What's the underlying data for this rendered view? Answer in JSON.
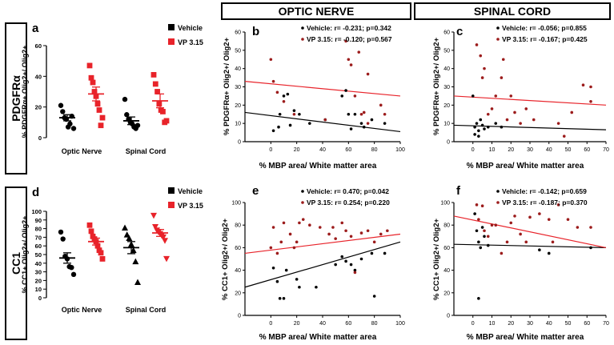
{
  "row_labels": {
    "top": "PDGFRα",
    "bottom": "CC1"
  },
  "column_headers": {
    "optic": "OPTIC NERVE",
    "spinal": "SPINAL CORD"
  },
  "colors": {
    "vehicle": "#000000",
    "vp": "#e8232a",
    "vp_points": "#9c1c1c"
  },
  "chart_data": [
    {
      "id": "a",
      "type": "scatter",
      "panel_letter": "a",
      "ylabel": "% PDGFRα+ Olig2+/ Olig2+",
      "ylim": [
        0,
        60
      ],
      "yticks": [
        0,
        20,
        40,
        60
      ],
      "categories": [
        "Optic Nerve",
        "Spinal Cord"
      ],
      "legend": [
        {
          "name": "Vehicle",
          "marker": "square",
          "color": "#000000"
        },
        {
          "name": "VP 3.15",
          "marker": "square",
          "color": "#e8232a"
        }
      ],
      "series": [
        {
          "name": "Vehicle",
          "category": "Optic Nerve",
          "marker": "circle",
          "values": [
            21,
            17,
            13,
            12,
            7,
            9,
            14,
            6
          ],
          "mean": 13,
          "sem": 2
        },
        {
          "name": "VP 3.15",
          "category": "Optic Nerve",
          "marker": "square",
          "values": [
            47,
            39,
            36,
            30,
            27,
            22,
            18,
            8,
            13
          ],
          "mean": 28.5,
          "sem": 4.5
        },
        {
          "name": "Vehicle",
          "category": "Spinal Cord",
          "marker": "circle",
          "values": [
            25,
            15,
            12,
            10,
            9,
            7,
            6,
            8
          ],
          "mean": 11,
          "sem": 2.5
        },
        {
          "name": "VP 3.15",
          "category": "Spinal Cord",
          "marker": "square",
          "values": [
            41,
            35,
            30,
            22,
            18,
            17,
            10,
            11
          ],
          "mean": 24,
          "sem": 4.5
        }
      ]
    },
    {
      "id": "d",
      "type": "scatter",
      "panel_letter": "d",
      "ylabel": "% CC1+ Olig2+/ Olig2+",
      "ylim": [
        0,
        100
      ],
      "yticks": [
        0,
        10,
        20,
        30,
        40,
        50,
        60,
        70,
        80,
        90,
        100
      ],
      "categories": [
        "Optic Nerve",
        "Spinal Cord"
      ],
      "legend": [
        {
          "name": "Vehicle",
          "marker": "square",
          "color": "#000000"
        },
        {
          "name": "VP 3.15",
          "marker": "square",
          "color": "#e8232a"
        }
      ],
      "series": [
        {
          "name": "Vehicle",
          "category": "Optic Nerve",
          "marker": "circle",
          "values": [
            76,
            68,
            48,
            45,
            36,
            35,
            27
          ],
          "mean": 46,
          "sem": 6
        },
        {
          "name": "VP 3.15",
          "category": "Optic Nerve",
          "marker": "square",
          "values": [
            84,
            77,
            71,
            68,
            65,
            60,
            55,
            52,
            45
          ],
          "mean": 65,
          "sem": 4
        },
        {
          "name": "Vehicle",
          "category": "Spinal Cord",
          "marker": "triangle",
          "values": [
            81,
            73,
            69,
            62,
            55,
            42,
            18
          ],
          "mean": 58,
          "sem": 7
        },
        {
          "name": "VP 3.15",
          "category": "Spinal Cord",
          "marker": "triangle-down",
          "values": [
            95,
            82,
            78,
            76,
            74,
            72,
            70,
            66,
            45
          ],
          "mean": 75,
          "sem": 4
        }
      ]
    },
    {
      "id": "b",
      "type": "scatter",
      "panel_letter": "b",
      "xlabel": "% MBP area/ White matter area",
      "ylabel": "% PDGFRα+ Olig2+/ Olig2+",
      "xlim": [
        -20,
        100
      ],
      "xticks": [
        0,
        20,
        40,
        60,
        80,
        100
      ],
      "ylim": [
        0,
        60
      ],
      "yticks": [
        0,
        10,
        20,
        30,
        40,
        50,
        60
      ],
      "annotations": [
        "Vehicle: r= -0.231; p=0.342",
        "VP 3.15: r= -0.120; p=0.567"
      ],
      "series": [
        {
          "name": "Vehicle",
          "color": "#000000",
          "points": [
            [
              2,
              6
            ],
            [
              7,
              15
            ],
            [
              10,
              25
            ],
            [
              13,
              26
            ],
            [
              15,
              9
            ],
            [
              18,
              17
            ],
            [
              22,
              15
            ],
            [
              30,
              10
            ],
            [
              42,
              12
            ],
            [
              55,
              25
            ],
            [
              58,
              28
            ],
            [
              60,
              15
            ],
            [
              62,
              7
            ],
            [
              65,
              15
            ],
            [
              70,
              10
            ],
            [
              72,
              8
            ],
            [
              78,
              12
            ],
            [
              88,
              10
            ],
            [
              6,
              8
            ]
          ],
          "fit": [
            [
              -20,
              16
            ],
            [
              100,
              5.5
            ]
          ]
        },
        {
          "name": "VP 3.15",
          "color": "#9c1c1c",
          "points": [
            [
              0,
              45
            ],
            [
              2,
              33
            ],
            [
              5,
              27
            ],
            [
              10,
              22
            ],
            [
              18,
              15
            ],
            [
              42,
              12
            ],
            [
              58,
              55
            ],
            [
              60,
              45
            ],
            [
              62,
              42
            ],
            [
              65,
              25
            ],
            [
              68,
              49
            ],
            [
              70,
              15
            ],
            [
              75,
              37
            ],
            [
              72,
              16
            ],
            [
              85,
              20
            ],
            [
              88,
              15
            ],
            [
              75,
              10
            ]
          ],
          "fit": [
            [
              -20,
              33
            ],
            [
              100,
              25
            ]
          ]
        }
      ]
    },
    {
      "id": "c",
      "type": "scatter",
      "panel_letter": "c",
      "xlabel": "% MBP area/ White matter area",
      "ylabel": "% PDGFRα+ Olig2+/ Olig2+",
      "xlim": [
        -10,
        70
      ],
      "xticks": [
        0,
        10,
        20,
        30,
        40,
        50,
        60,
        70
      ],
      "ylim": [
        0,
        60
      ],
      "yticks": [
        0,
        10,
        20,
        30,
        40,
        50,
        60
      ],
      "annotations": [
        "Vehicle: r= -0.056; p=0.855",
        "VP 3.15: r= -0.167; p=0.425"
      ],
      "series": [
        {
          "name": "Vehicle",
          "color": "#000000",
          "points": [
            [
              0,
              25
            ],
            [
              1,
              8
            ],
            [
              2,
              10
            ],
            [
              3,
              6
            ],
            [
              4,
              12
            ],
            [
              5,
              9
            ],
            [
              6,
              7
            ],
            [
              3,
              3
            ],
            [
              1,
              4
            ],
            [
              8,
              8
            ],
            [
              12,
              10
            ],
            [
              15,
              8
            ]
          ],
          "fit": [
            [
              -10,
              9
            ],
            [
              70,
              6.5
            ]
          ]
        },
        {
          "name": "VP 3.15",
          "color": "#9c1c1c",
          "points": [
            [
              2,
              53
            ],
            [
              4,
              47
            ],
            [
              5,
              35
            ],
            [
              6,
              40
            ],
            [
              8,
              15
            ],
            [
              10,
              18
            ],
            [
              12,
              25
            ],
            [
              15,
              35
            ],
            [
              16,
              45
            ],
            [
              18,
              12
            ],
            [
              20,
              25
            ],
            [
              22,
              16
            ],
            [
              25,
              10
            ],
            [
              28,
              18
            ],
            [
              32,
              12
            ],
            [
              45,
              10
            ],
            [
              52,
              16
            ],
            [
              58,
              31
            ],
            [
              62,
              30
            ],
            [
              62,
              22
            ],
            [
              48,
              3
            ]
          ],
          "fit": [
            [
              -10,
              25
            ],
            [
              70,
              20
            ]
          ]
        }
      ]
    },
    {
      "id": "e",
      "type": "scatter",
      "panel_letter": "e",
      "xlabel": "% MBP area/ White matter area",
      "ylabel": "% CC1+ Olig2+/ Olig2+",
      "xlim": [
        -20,
        100
      ],
      "xticks": [
        0,
        20,
        40,
        60,
        80,
        100
      ],
      "ylim": [
        0,
        100
      ],
      "yticks": [
        0,
        20,
        40,
        60,
        80,
        100
      ],
      "annotations": [
        "Vehicle: r= 0.470; p=0.042",
        "VP 3.15: r= 0.254; p=0.220"
      ],
      "series": [
        {
          "name": "Vehicle",
          "color": "#000000",
          "points": [
            [
              2,
              42
            ],
            [
              5,
              30
            ],
            [
              7,
              15
            ],
            [
              10,
              15
            ],
            [
              12,
              40
            ],
            [
              20,
              32
            ],
            [
              22,
              25
            ],
            [
              35,
              25
            ],
            [
              50,
              45
            ],
            [
              55,
              52
            ],
            [
              58,
              48
            ],
            [
              62,
              45
            ],
            [
              65,
              40
            ],
            [
              70,
              50
            ],
            [
              78,
              55
            ],
            [
              80,
              17
            ],
            [
              88,
              55
            ]
          ],
          "fit": [
            [
              -20,
              25
            ],
            [
              100,
              65
            ]
          ]
        },
        {
          "name": "VP 3.15",
          "color": "#9c1c1c",
          "points": [
            [
              0,
              60
            ],
            [
              2,
              78
            ],
            [
              5,
              55
            ],
            [
              8,
              65
            ],
            [
              10,
              82
            ],
            [
              15,
              72
            ],
            [
              18,
              60
            ],
            [
              20,
              65
            ],
            [
              22,
              82
            ],
            [
              25,
              85
            ],
            [
              30,
              80
            ],
            [
              38,
              78
            ],
            [
              45,
              72
            ],
            [
              48,
              78
            ],
            [
              50,
              68
            ],
            [
              55,
              82
            ],
            [
              58,
              75
            ],
            [
              62,
              70
            ],
            [
              65,
              38
            ],
            [
              70,
              73
            ],
            [
              75,
              75
            ],
            [
              80,
              65
            ],
            [
              85,
              72
            ],
            [
              90,
              75
            ]
          ],
          "fit": [
            [
              -20,
              55
            ],
            [
              100,
              72
            ]
          ]
        }
      ]
    },
    {
      "id": "f",
      "type": "scatter",
      "panel_letter": "f",
      "xlabel": "% MBP area/ White matter area",
      "ylabel": "% CC1+ Olig2+/ Olig2+",
      "xlim": [
        -10,
        70
      ],
      "xticks": [
        0,
        10,
        20,
        30,
        40,
        50,
        60,
        70
      ],
      "ylim": [
        0,
        100
      ],
      "yticks": [
        0,
        20,
        40,
        60,
        80,
        100
      ],
      "annotations": [
        "Vehicle: r= -0.142; p=0.659",
        "VP 3.15: r= -0.187; p=0.370"
      ],
      "series": [
        {
          "name": "Vehicle",
          "color": "#000000",
          "points": [
            [
              1,
              90
            ],
            [
              2,
              75
            ],
            [
              3,
              65
            ],
            [
              4,
              60
            ],
            [
              5,
              78
            ],
            [
              6,
              70
            ],
            [
              3,
              15
            ],
            [
              8,
              62
            ],
            [
              35,
              58
            ],
            [
              40,
              55
            ],
            [
              62,
              60
            ]
          ],
          "fit": [
            [
              -10,
              63
            ],
            [
              70,
              60
            ]
          ]
        },
        {
          "name": "VP 3.15",
          "color": "#9c1c1c",
          "points": [
            [
              2,
              98
            ],
            [
              3,
              85
            ],
            [
              5,
              97
            ],
            [
              6,
              75
            ],
            [
              8,
              70
            ],
            [
              10,
              80
            ],
            [
              12,
              80
            ],
            [
              15,
              55
            ],
            [
              18,
              65
            ],
            [
              20,
              82
            ],
            [
              22,
              88
            ],
            [
              25,
              72
            ],
            [
              28,
              65
            ],
            [
              30,
              87
            ],
            [
              35,
              90
            ],
            [
              40,
              85
            ],
            [
              42,
              65
            ],
            [
              45,
              98
            ],
            [
              50,
              85
            ],
            [
              55,
              78
            ],
            [
              62,
              78
            ]
          ],
          "fit": [
            [
              -10,
              88
            ],
            [
              70,
              60
            ]
          ]
        }
      ]
    }
  ]
}
